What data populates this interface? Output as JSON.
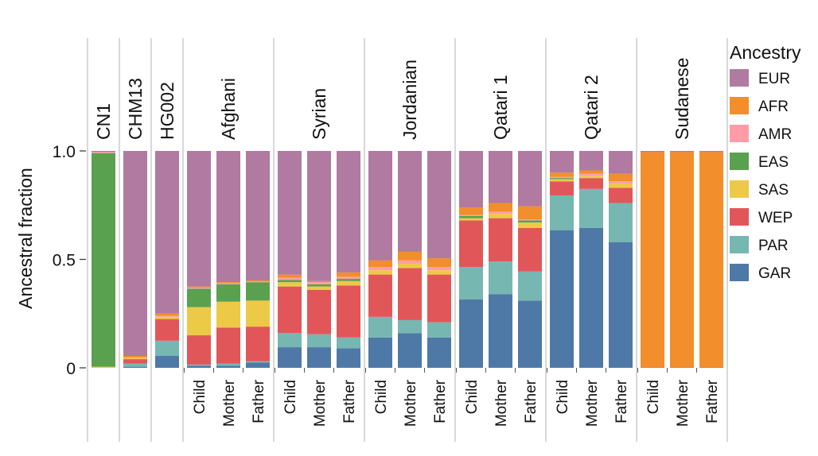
{
  "chart_data": {
    "type": "bar",
    "stacked": true,
    "ylabel": "Ancestral fraction",
    "ylim": [
      0,
      1
    ],
    "yticks": [
      {
        "value": 0,
        "label": "0"
      },
      {
        "value": 0.5,
        "label": "0.5"
      },
      {
        "value": 1.0,
        "label": "1.0"
      }
    ],
    "legend_title": "Ancestry",
    "legend_position": "right",
    "components": [
      {
        "key": "GAR",
        "label": "GAR",
        "color": "#4e79a7"
      },
      {
        "key": "PAR",
        "label": "PAR",
        "color": "#76b7b2"
      },
      {
        "key": "WEP",
        "label": "WEP",
        "color": "#e15759"
      },
      {
        "key": "SAS",
        "label": "SAS",
        "color": "#edc948"
      },
      {
        "key": "EAS",
        "label": "EAS",
        "color": "#59a14f"
      },
      {
        "key": "AMR",
        "label": "AMR",
        "color": "#ff9da7"
      },
      {
        "key": "AFR",
        "label": "AFR",
        "color": "#f28e2b"
      },
      {
        "key": "EUR",
        "label": "EUR",
        "color": "#b07aa1"
      }
    ],
    "legend_order": [
      "EUR",
      "AFR",
      "AMR",
      "EAS",
      "SAS",
      "WEP",
      "PAR",
      "GAR"
    ],
    "groups": [
      {
        "name": "CN1",
        "bars": [
          {
            "label": "",
            "values": {
              "GAR": 0.0,
              "PAR": 0.0,
              "WEP": 0.0,
              "SAS": 0.005,
              "EAS": 0.985,
              "AMR": 0.005,
              "AFR": 0.0,
              "EUR": 0.005
            }
          }
        ]
      },
      {
        "name": "CHM13",
        "bars": [
          {
            "label": "",
            "values": {
              "GAR": 0.005,
              "PAR": 0.015,
              "WEP": 0.02,
              "SAS": 0.005,
              "EAS": 0.0,
              "AMR": 0.003,
              "AFR": 0.007,
              "EUR": 0.945
            }
          }
        ]
      },
      {
        "name": "HG002",
        "bars": [
          {
            "label": "",
            "values": {
              "GAR": 0.055,
              "PAR": 0.07,
              "WEP": 0.1,
              "SAS": 0.01,
              "EAS": 0.0,
              "AMR": 0.005,
              "AFR": 0.01,
              "EUR": 0.75
            }
          }
        ]
      },
      {
        "name": "Afghani",
        "bars": [
          {
            "label": "Child",
            "values": {
              "GAR": 0.01,
              "PAR": 0.005,
              "WEP": 0.135,
              "SAS": 0.13,
              "EAS": 0.085,
              "AMR": 0.005,
              "AFR": 0.005,
              "EUR": 0.625
            }
          },
          {
            "label": "Mother",
            "values": {
              "GAR": 0.01,
              "PAR": 0.01,
              "WEP": 0.165,
              "SAS": 0.12,
              "EAS": 0.08,
              "AMR": 0.005,
              "AFR": 0.005,
              "EUR": 0.605
            }
          },
          {
            "label": "Father",
            "values": {
              "GAR": 0.025,
              "PAR": 0.005,
              "WEP": 0.16,
              "SAS": 0.12,
              "EAS": 0.085,
              "AMR": 0.003,
              "AFR": 0.005,
              "EUR": 0.597
            }
          }
        ]
      },
      {
        "name": "Syrian",
        "bars": [
          {
            "label": "Child",
            "values": {
              "GAR": 0.095,
              "PAR": 0.065,
              "WEP": 0.215,
              "SAS": 0.02,
              "EAS": 0.01,
              "AMR": 0.01,
              "AFR": 0.015,
              "EUR": 0.57
            }
          },
          {
            "label": "Mother",
            "values": {
              "GAR": 0.095,
              "PAR": 0.06,
              "WEP": 0.205,
              "SAS": 0.015,
              "EAS": 0.01,
              "AMR": 0.01,
              "AFR": 0.005,
              "EUR": 0.6
            }
          },
          {
            "label": "Father",
            "values": {
              "GAR": 0.09,
              "PAR": 0.05,
              "WEP": 0.24,
              "SAS": 0.02,
              "EAS": 0.01,
              "AMR": 0.01,
              "AFR": 0.02,
              "EUR": 0.56
            }
          }
        ]
      },
      {
        "name": "Jordanian",
        "bars": [
          {
            "label": "Child",
            "values": {
              "GAR": 0.14,
              "PAR": 0.095,
              "WEP": 0.195,
              "SAS": 0.02,
              "EAS": 0.0,
              "AMR": 0.015,
              "AFR": 0.03,
              "EUR": 0.505
            }
          },
          {
            "label": "Mother",
            "values": {
              "GAR": 0.16,
              "PAR": 0.06,
              "WEP": 0.24,
              "SAS": 0.02,
              "EAS": 0.0,
              "AMR": 0.015,
              "AFR": 0.04,
              "EUR": 0.465
            }
          },
          {
            "label": "Father",
            "values": {
              "GAR": 0.14,
              "PAR": 0.07,
              "WEP": 0.22,
              "SAS": 0.02,
              "EAS": 0.0,
              "AMR": 0.015,
              "AFR": 0.04,
              "EUR": 0.495
            }
          }
        ]
      },
      {
        "name": "Qatari 1",
        "bars": [
          {
            "label": "Child",
            "values": {
              "GAR": 0.315,
              "PAR": 0.15,
              "WEP": 0.215,
              "SAS": 0.01,
              "EAS": 0.01,
              "AMR": 0.005,
              "AFR": 0.035,
              "EUR": 0.26
            }
          },
          {
            "label": "Mother",
            "values": {
              "GAR": 0.34,
              "PAR": 0.15,
              "WEP": 0.2,
              "SAS": 0.02,
              "EAS": 0.0,
              "AMR": 0.01,
              "AFR": 0.04,
              "EUR": 0.24
            }
          },
          {
            "label": "Father",
            "values": {
              "GAR": 0.31,
              "PAR": 0.135,
              "WEP": 0.2,
              "SAS": 0.025,
              "EAS": 0.01,
              "AMR": 0.005,
              "AFR": 0.06,
              "EUR": 0.255
            }
          }
        ]
      },
      {
        "name": "Qatari 2",
        "bars": [
          {
            "label": "Child",
            "values": {
              "GAR": 0.635,
              "PAR": 0.16,
              "WEP": 0.065,
              "SAS": 0.01,
              "EAS": 0.005,
              "AMR": 0.005,
              "AFR": 0.02,
              "EUR": 0.1
            }
          },
          {
            "label": "Mother",
            "values": {
              "GAR": 0.645,
              "PAR": 0.18,
              "WEP": 0.05,
              "SAS": 0.01,
              "EAS": 0.0,
              "AMR": 0.01,
              "AFR": 0.015,
              "EUR": 0.09
            }
          },
          {
            "label": "Father",
            "values": {
              "GAR": 0.58,
              "PAR": 0.18,
              "WEP": 0.07,
              "SAS": 0.02,
              "EAS": 0.0,
              "AMR": 0.01,
              "AFR": 0.035,
              "EUR": 0.105
            }
          }
        ]
      },
      {
        "name": "Sudanese",
        "bars": [
          {
            "label": "Child",
            "values": {
              "GAR": 0.0,
              "PAR": 0.0,
              "WEP": 0.002,
              "SAS": 0.0,
              "EAS": 0.0,
              "AMR": 0.0,
              "AFR": 0.993,
              "EUR": 0.005
            }
          },
          {
            "label": "Mother",
            "values": {
              "GAR": 0.0,
              "PAR": 0.0,
              "WEP": 0.002,
              "SAS": 0.0,
              "EAS": 0.0,
              "AMR": 0.0,
              "AFR": 0.993,
              "EUR": 0.005
            }
          },
          {
            "label": "Father",
            "values": {
              "GAR": 0.0,
              "PAR": 0.0,
              "WEP": 0.002,
              "SAS": 0.0,
              "EAS": 0.0,
              "AMR": 0.0,
              "AFR": 0.993,
              "EUR": 0.005
            }
          }
        ]
      }
    ]
  }
}
